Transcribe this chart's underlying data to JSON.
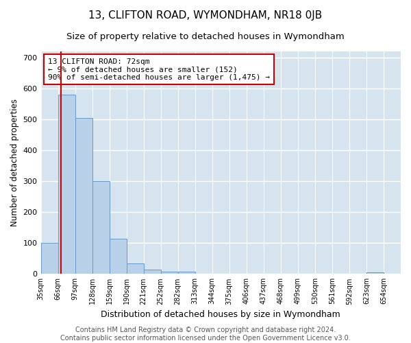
{
  "title": "13, CLIFTON ROAD, WYMONDHAM, NR18 0JB",
  "subtitle": "Size of property relative to detached houses in Wymondham",
  "xlabel": "Distribution of detached houses by size in Wymondham",
  "ylabel": "Number of detached properties",
  "bin_labels": [
    "35sqm",
    "66sqm",
    "97sqm",
    "128sqm",
    "159sqm",
    "190sqm",
    "221sqm",
    "252sqm",
    "282sqm",
    "313sqm",
    "344sqm",
    "375sqm",
    "406sqm",
    "437sqm",
    "468sqm",
    "499sqm",
    "530sqm",
    "561sqm",
    "592sqm",
    "623sqm",
    "654sqm"
  ],
  "bar_heights": [
    100,
    580,
    505,
    300,
    115,
    35,
    15,
    8,
    8,
    0,
    0,
    0,
    0,
    0,
    0,
    0,
    0,
    0,
    0,
    5,
    0
  ],
  "bar_color": "#b8d0e8",
  "bar_edge_color": "#6699cc",
  "property_bar_index": 1,
  "property_line_color": "#cc0000",
  "annotation_line1": "13 CLIFTON ROAD: 72sqm",
  "annotation_line2": "← 9% of detached houses are smaller (152)",
  "annotation_line3": "90% of semi-detached houses are larger (1,475) →",
  "annotation_box_color": "#cc0000",
  "ylim": [
    0,
    720
  ],
  "yticks": [
    0,
    100,
    200,
    300,
    400,
    500,
    600,
    700
  ],
  "grid_color": "#ffffff",
  "bg_color": "#d6e4f0",
  "title_fontsize": 11,
  "subtitle_fontsize": 9.5,
  "xlabel_fontsize": 9,
  "ylabel_fontsize": 8.5,
  "tick_fontsize": 7,
  "annotation_fontsize": 8,
  "footer_text": "Contains HM Land Registry data © Crown copyright and database right 2024.\nContains public sector information licensed under the Open Government Licence v3.0.",
  "footer_fontsize": 7
}
